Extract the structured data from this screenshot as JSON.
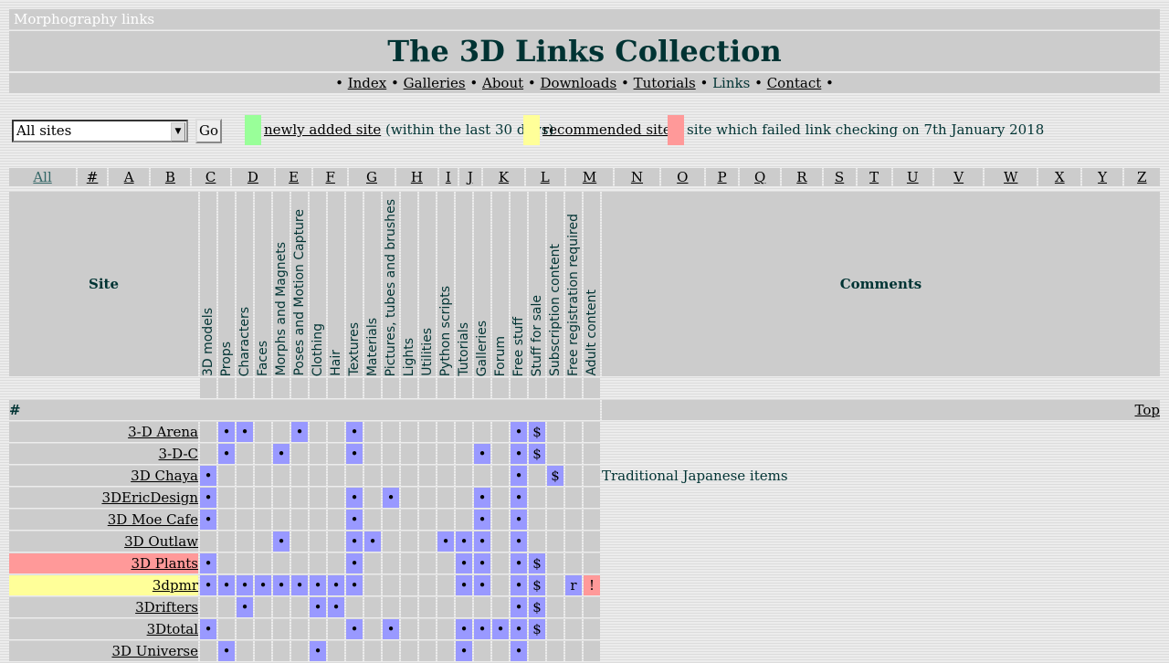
{
  "site_name": "Morphography links",
  "title": "The 3D Links Collection",
  "nav": {
    "separator": "•",
    "items": [
      {
        "label": "Index",
        "link": true
      },
      {
        "label": "Galleries",
        "link": true
      },
      {
        "label": "About",
        "link": true
      },
      {
        "label": "Downloads",
        "link": true
      },
      {
        "label": "Tutorials",
        "link": true
      },
      {
        "label": "Links",
        "link": false
      },
      {
        "label": "Contact",
        "link": true
      }
    ]
  },
  "filter": {
    "selected": "All sites",
    "go_label": "Go"
  },
  "legend": {
    "new": {
      "color": "#99ff99",
      "link": "newly added site",
      "text": "(within the last 30 days)"
    },
    "recommended": {
      "color": "#ffff99",
      "link": "recommended site"
    },
    "failed": {
      "color": "#ff9999",
      "text": "site which failed link checking on 7th January 2018"
    }
  },
  "alphabet": [
    "All",
    "#",
    "A",
    "B",
    "C",
    "D",
    "E",
    "F",
    "G",
    "H",
    "I",
    "J",
    "K",
    "L",
    "M",
    "N",
    "O",
    "P",
    "Q",
    "R",
    "S",
    "T",
    "U",
    "V",
    "W",
    "X",
    "Y",
    "Z"
  ],
  "alphabet_active": "All",
  "table": {
    "site_header": "Site",
    "comments_header": "Comments",
    "categories": [
      "3D models",
      "Props",
      "Characters",
      "Faces",
      "Morphs and Magnets",
      "Poses and Motion Capture",
      "Clothing",
      "Hair",
      "Textures",
      "Materials",
      "Pictures, tubes and brushes",
      "Lights",
      "Utilities",
      "Python scripts",
      "Tutorials",
      "Galleries",
      "Forum",
      "Free stuff",
      "Stuff for sale",
      "Subscription content",
      "Free registration required",
      "Adult content"
    ],
    "section": "#",
    "top_label": "Top",
    "rows": [
      {
        "name": "3-D Arena",
        "status": "",
        "cells": [
          "",
          "•",
          "•",
          "",
          "",
          "•",
          "",
          "",
          "•",
          "",
          "",
          "",
          "",
          "",
          "",
          "",
          "",
          "•",
          "$",
          "",
          "",
          ""
        ],
        "comment": ""
      },
      {
        "name": "3-D-C",
        "status": "",
        "cells": [
          "",
          "•",
          "",
          "",
          "•",
          "",
          "",
          "",
          "•",
          "",
          "",
          "",
          "",
          "",
          "",
          "•",
          "",
          "•",
          "$",
          "",
          "",
          ""
        ],
        "comment": ""
      },
      {
        "name": "3D Chaya",
        "status": "",
        "cells": [
          "•",
          "",
          "",
          "",
          "",
          "",
          "",
          "",
          "",
          "",
          "",
          "",
          "",
          "",
          "",
          "",
          "",
          "•",
          "",
          "$",
          "",
          ""
        ],
        "comment": "Traditional Japanese items"
      },
      {
        "name": "3DEricDesign",
        "status": "",
        "cells": [
          "•",
          "",
          "",
          "",
          "",
          "",
          "",
          "",
          "•",
          "",
          "•",
          "",
          "",
          "",
          "",
          "•",
          "",
          "•",
          "",
          "",
          "",
          ""
        ],
        "comment": ""
      },
      {
        "name": "3D Moe Cafe",
        "status": "",
        "cells": [
          "•",
          "",
          "",
          "",
          "",
          "",
          "",
          "",
          "•",
          "",
          "",
          "",
          "",
          "",
          "",
          "•",
          "",
          "•",
          "",
          "",
          "",
          ""
        ],
        "comment": ""
      },
      {
        "name": "3D Outlaw",
        "status": "",
        "cells": [
          "",
          "",
          "",
          "",
          "•",
          "",
          "",
          "",
          "•",
          "•",
          "",
          "",
          "",
          "•",
          "•",
          "•",
          "",
          "•",
          "",
          "",
          "",
          ""
        ],
        "comment": ""
      },
      {
        "name": "3D Plants",
        "status": "failed",
        "cells": [
          "•",
          "",
          "",
          "",
          "",
          "",
          "",
          "",
          "•",
          "",
          "",
          "",
          "",
          "",
          "•",
          "•",
          "",
          "•",
          "$",
          "",
          "",
          ""
        ],
        "comment": ""
      },
      {
        "name": "3dpmr",
        "status": "recommended",
        "cells": [
          "•",
          "•",
          "•",
          "•",
          "•",
          "•",
          "•",
          "•",
          "•",
          "",
          "",
          "",
          "",
          "",
          "•",
          "•",
          "",
          "•",
          "$",
          "",
          "r",
          "!"
        ],
        "comment": ""
      },
      {
        "name": "3Drifters",
        "status": "",
        "cells": [
          "",
          "",
          "•",
          "",
          "",
          "",
          "•",
          "•",
          "",
          "",
          "",
          "",
          "",
          "",
          "",
          "",
          "",
          "•",
          "$",
          "",
          "",
          ""
        ],
        "comment": ""
      },
      {
        "name": "3Dtotal",
        "status": "",
        "cells": [
          "•",
          "",
          "",
          "",
          "",
          "",
          "",
          "",
          "•",
          "",
          "•",
          "",
          "",
          "",
          "•",
          "•",
          "•",
          "•",
          "$",
          "",
          "",
          ""
        ],
        "comment": ""
      },
      {
        "name": "3D Universe",
        "status": "",
        "cells": [
          "",
          "•",
          "",
          "",
          "",
          "",
          "•",
          "",
          "",
          "",
          "",
          "",
          "",
          "",
          "•",
          "",
          "",
          "•",
          "",
          "",
          "",
          ""
        ],
        "comment": ""
      }
    ]
  }
}
